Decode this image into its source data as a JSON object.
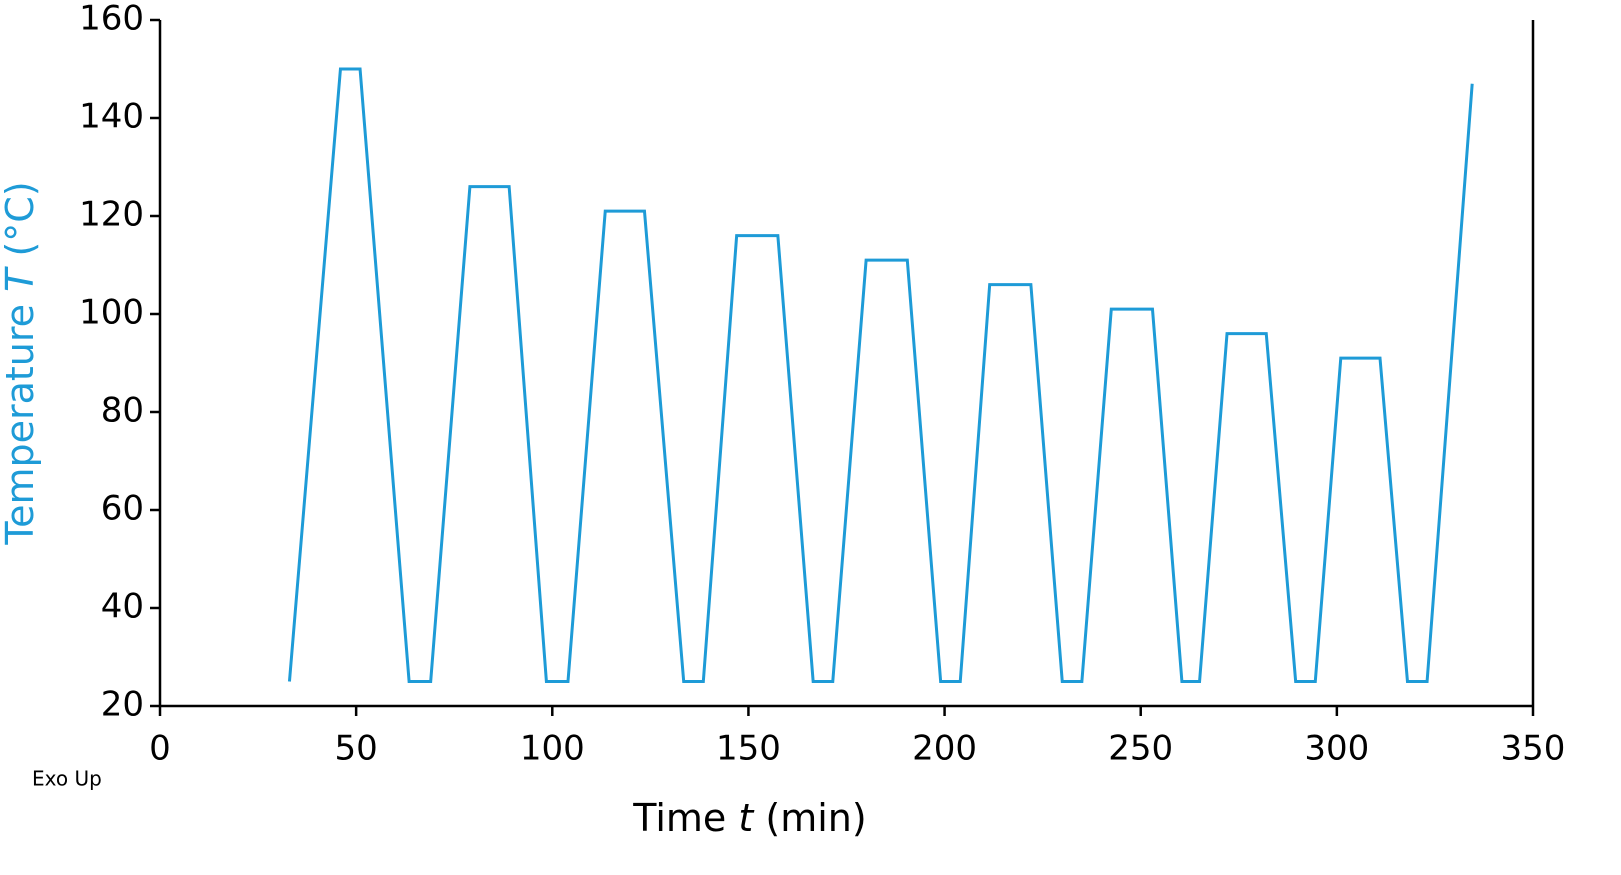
{
  "chart_data": {
    "type": "line",
    "xlabel": {
      "text": "Time",
      "symbol": "t",
      "unit": "(min)"
    },
    "ylabel": {
      "text": "Temperature",
      "symbol": "T",
      "unit": "(°C)"
    },
    "annotation": "Exo Up",
    "x": [
      33,
      46,
      51,
      63.5,
      69,
      79,
      89,
      98.5,
      104,
      113.5,
      123.5,
      133.5,
      138.5,
      147,
      157.5,
      166.5,
      171.5,
      180,
      190.5,
      199,
      204,
      211.5,
      222,
      230,
      235,
      242.5,
      253,
      260.5,
      265,
      272,
      282,
      289.5,
      294.5,
      301,
      311,
      318,
      323,
      334.5
    ],
    "values": [
      25,
      150,
      150,
      25,
      25,
      126,
      126,
      25,
      25,
      121,
      121,
      25,
      25,
      116,
      116,
      25,
      25,
      111,
      111,
      25,
      25,
      106,
      106,
      25,
      25,
      101,
      101,
      25,
      25,
      96,
      96,
      25,
      25,
      91,
      91,
      25,
      25,
      147
    ],
    "color": "#1e9bd7",
    "xlim": [
      0,
      350
    ],
    "xticks": [
      0,
      50,
      100,
      150,
      200,
      250,
      300,
      350
    ],
    "ylim": [
      20,
      160
    ],
    "yticks": [
      20,
      40,
      60,
      80,
      100,
      120,
      140,
      160
    ],
    "grid": false
  }
}
